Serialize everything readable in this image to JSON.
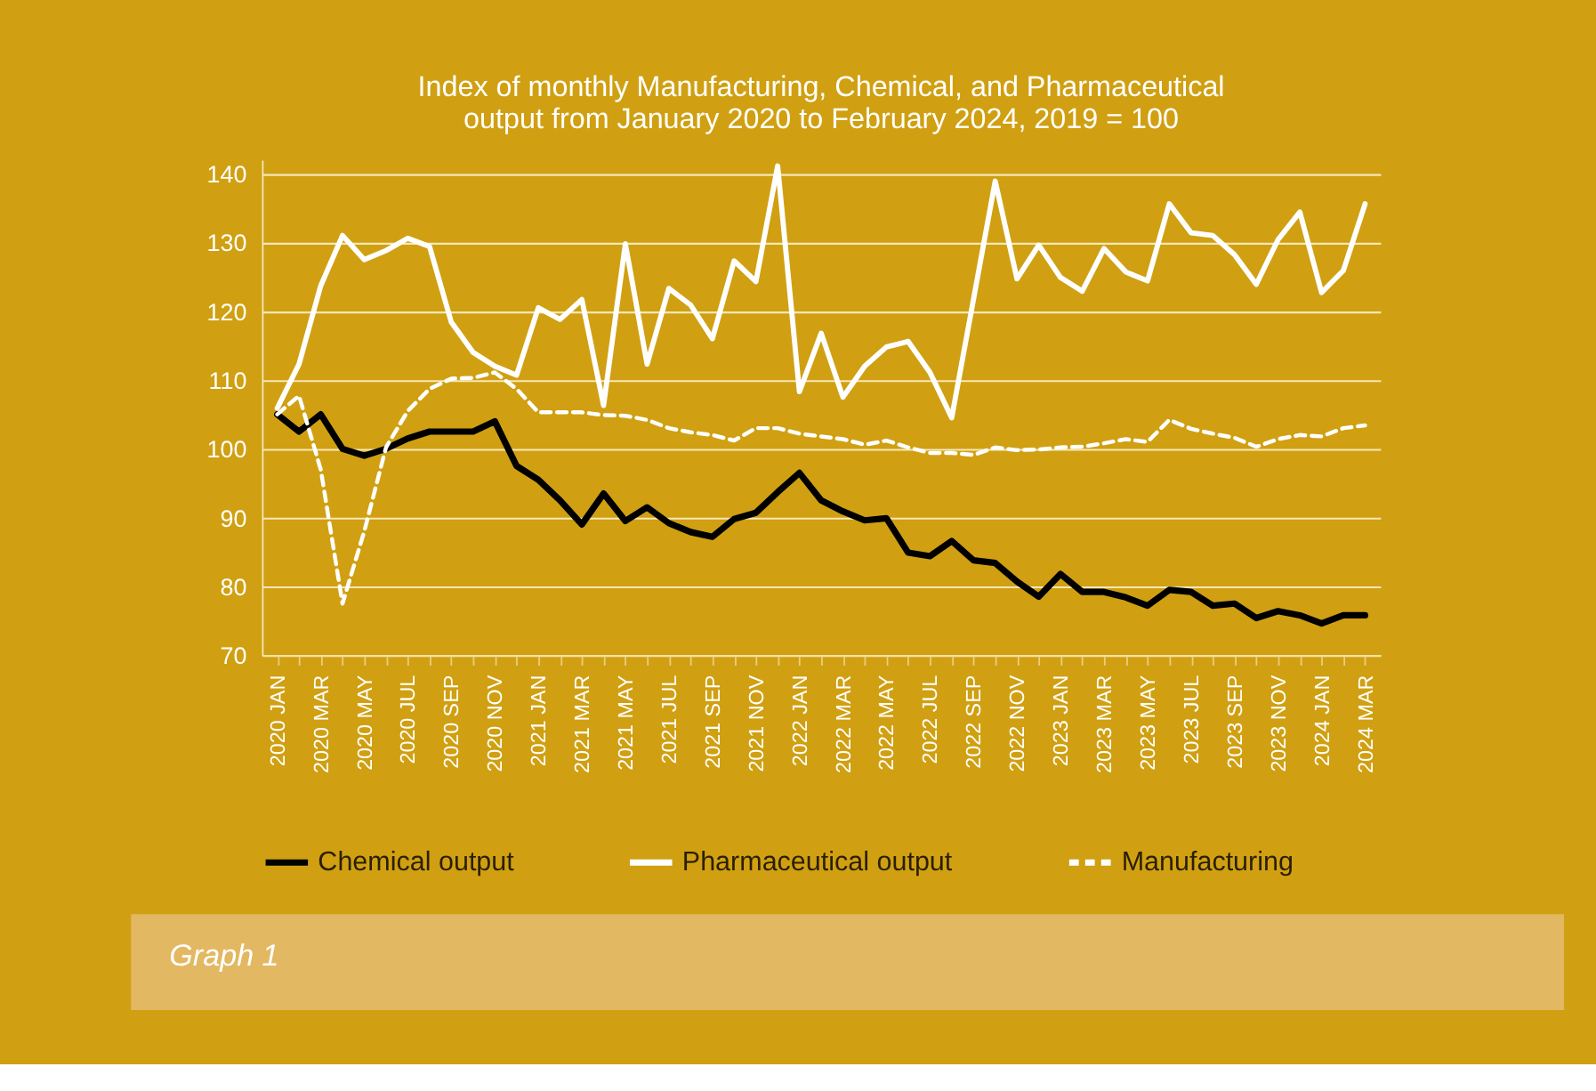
{
  "chart_data": {
    "type": "line",
    "title": "Index of monthly Manufacturing, Chemical, and Pharmaceutical output from January 2020 to February 2024, 2019 = 100",
    "categories": [
      "2020 JAN",
      null,
      "2020 MAR",
      null,
      "2020 MAY",
      null,
      "2020 JUL",
      null,
      "2020 SEP",
      null,
      "2020 NOV",
      null,
      "2021 JAN",
      null,
      "2021 MAR",
      null,
      "2021 MAY",
      null,
      "2021 JUL",
      null,
      "2021 SEP",
      null,
      "2021 NOV",
      null,
      "2022 JAN",
      null,
      "2022 MAR",
      null,
      "2022 MAY",
      null,
      "2022 JUL",
      null,
      "2022 SEP",
      null,
      "2022 NOV",
      null,
      "2023 JAN",
      null,
      "2023 MAR",
      null,
      "2023 MAY",
      null,
      "2023 JUL",
      null,
      "2023 SEP",
      null,
      "2023 NOV",
      null,
      "2024 JAN",
      null,
      "2024 MAR"
    ],
    "series": [
      {
        "name": "Chemical output",
        "color": "#000000",
        "line_style": "solid",
        "values": [
          105,
          102.5,
          105,
          100,
          99,
          100,
          101.5,
          102.5,
          102.5,
          102.5,
          104,
          97.5,
          95.5,
          92.5,
          89,
          93.5,
          89.5,
          91.5,
          89.2,
          87.9,
          87.2,
          89.8,
          90.7,
          93.7,
          96.5,
          92.5,
          90.9,
          89.6,
          89.9,
          84.9,
          84.4,
          86.6,
          83.8,
          83.4,
          80.7,
          78.5,
          81.8,
          79.2,
          79.2,
          78.4,
          77.2,
          79.5,
          79.2,
          77.2,
          77.5,
          75.4,
          76.4,
          75.8,
          74.6,
          75.8,
          75.8
        ]
      },
      {
        "name": "Pharmaceutical output",
        "color": "#ffffff",
        "line_style": "solid",
        "values": [
          105.9,
          112.3,
          123.7,
          131,
          127.5,
          128.8,
          130.6,
          129.4,
          118.4,
          114,
          112,
          110.7,
          120.5,
          118.8,
          121.7,
          106.3,
          129.8,
          112.3,
          123.3,
          120.9,
          116,
          127.3,
          124.3,
          141.1,
          108.3,
          116.8,
          107.5,
          112,
          114.8,
          115.6,
          111.1,
          104.5,
          121.7,
          138.9,
          124.7,
          129.6,
          124.9,
          122.9,
          129.1,
          125.7,
          124.4,
          135.6,
          131.4,
          131,
          128.2,
          123.9,
          130.4,
          134.4,
          122.7,
          125.9,
          135.6
        ]
      },
      {
        "name": "Manufacturing",
        "color": "#ffffff",
        "line_style": "dashed",
        "values": [
          105,
          107.7,
          97,
          77.5,
          88,
          100.2,
          105.5,
          108.7,
          110.2,
          110.3,
          111.1,
          108.7,
          105.3,
          105.3,
          105.3,
          104.9,
          104.8,
          104.2,
          103,
          102.4,
          102,
          101.2,
          103,
          103,
          102.2,
          101.8,
          101.4,
          100.6,
          101.2,
          100.2,
          99.4,
          99.4,
          99.1,
          100.2,
          99.8,
          99.9,
          100.2,
          100.3,
          100.8,
          101.4,
          101,
          104.2,
          102.9,
          102.2,
          101.6,
          100.3,
          101.4,
          102,
          101.8,
          103,
          103.4
        ]
      }
    ],
    "ylim": [
      70,
      142
    ],
    "yticks": [
      70,
      80,
      90,
      100,
      110,
      120,
      130,
      140
    ],
    "grid": "y",
    "legend": "bottom",
    "marker": "none",
    "annotations": [
      "Graph 1"
    ]
  }
}
